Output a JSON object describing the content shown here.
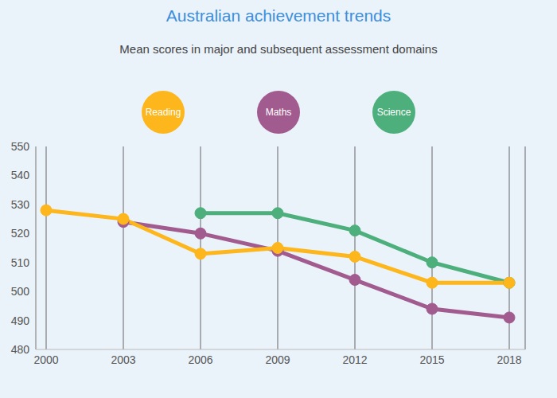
{
  "chart_data": {
    "type": "line",
    "title": "Australian achievement trends",
    "subtitle": "Mean scores in major and subsequent assessment domains",
    "categories": [
      "2000",
      "2003",
      "2006",
      "2009",
      "2012",
      "2015",
      "2018"
    ],
    "series": [
      {
        "name": "Reading",
        "color": "#fdb61c",
        "values": [
          528,
          525,
          513,
          515,
          512,
          503,
          503
        ]
      },
      {
        "name": "Maths",
        "color": "#a25b8f",
        "values": [
          null,
          524,
          520,
          514,
          504,
          494,
          491
        ]
      },
      {
        "name": "Science",
        "color": "#4daf7c",
        "values": [
          null,
          null,
          527,
          527,
          521,
          510,
          503
        ]
      }
    ],
    "ylim": [
      480,
      550
    ],
    "yticks": [
      480,
      490,
      500,
      510,
      520,
      530,
      540,
      550
    ],
    "grid": true,
    "marker": "circle"
  }
}
